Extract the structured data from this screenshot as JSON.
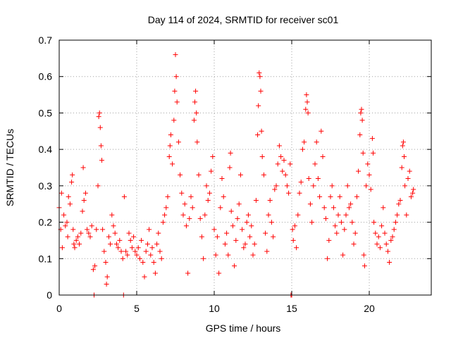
{
  "chart_data": {
    "type": "scatter",
    "title": "Day 114 of 2024, SRMTID for receiver sc01",
    "xlabel": "GPS time / hours",
    "ylabel": "SRMTID / TECUs",
    "xlim": [
      0,
      24
    ],
    "ylim": [
      0,
      0.7
    ],
    "xticks": [
      0,
      5,
      10,
      15,
      20
    ],
    "yticks": [
      0,
      0.1,
      0.2,
      0.3,
      0.4,
      0.5,
      0.6,
      0.7
    ],
    "xtick_labels": [
      "0",
      "5",
      "10",
      "15",
      "20"
    ],
    "ytick_labels": [
      "0",
      "0.1",
      "0.2",
      "0.3",
      "0.4",
      "0.5",
      "0.6",
      "0.7"
    ],
    "grid": true,
    "legend": "none",
    "marker": "plus",
    "series": [
      {
        "name": "sc01",
        "color": "#ff0000",
        "points": [
          [
            0.0,
            0.24
          ],
          [
            0.1,
            0.18
          ],
          [
            0.15,
            0.28
          ],
          [
            0.2,
            0.13
          ],
          [
            0.3,
            0.22
          ],
          [
            0.4,
            0.19
          ],
          [
            0.5,
            0.2
          ],
          [
            0.55,
            0.16
          ],
          [
            0.6,
            0.27
          ],
          [
            0.7,
            0.25
          ],
          [
            0.8,
            0.31
          ],
          [
            0.85,
            0.33
          ],
          [
            0.9,
            0.18
          ],
          [
            0.95,
            0.14
          ],
          [
            1.0,
            0.13
          ],
          [
            1.1,
            0.15
          ],
          [
            1.2,
            0.16
          ],
          [
            1.3,
            0.14
          ],
          [
            1.4,
            0.17
          ],
          [
            1.5,
            0.23
          ],
          [
            1.55,
            0.35
          ],
          [
            1.6,
            0.26
          ],
          [
            1.7,
            0.28
          ],
          [
            1.8,
            0.18
          ],
          [
            1.9,
            0.17
          ],
          [
            2.0,
            0.16
          ],
          [
            2.1,
            0.19
          ],
          [
            2.2,
            0.07
          ],
          [
            2.25,
            0.0
          ],
          [
            2.3,
            0.08
          ],
          [
            2.4,
            0.18
          ],
          [
            2.5,
            0.3
          ],
          [
            2.55,
            0.49
          ],
          [
            2.6,
            0.5
          ],
          [
            2.65,
            0.46
          ],
          [
            2.7,
            0.41
          ],
          [
            2.75,
            0.37
          ],
          [
            2.8,
            0.18
          ],
          [
            2.9,
            0.12
          ],
          [
            3.0,
            0.09
          ],
          [
            3.05,
            0.03
          ],
          [
            3.1,
            0.05
          ],
          [
            3.2,
            0.16
          ],
          [
            3.3,
            0.14
          ],
          [
            3.4,
            0.22
          ],
          [
            3.5,
            0.19
          ],
          [
            3.6,
            0.17
          ],
          [
            3.7,
            0.14
          ],
          [
            3.8,
            0.13
          ],
          [
            3.9,
            0.15
          ],
          [
            4.0,
            0.12
          ],
          [
            4.1,
            0.1
          ],
          [
            4.15,
            0.0
          ],
          [
            4.2,
            0.27
          ],
          [
            4.3,
            0.12
          ],
          [
            4.4,
            0.11
          ],
          [
            4.5,
            0.17
          ],
          [
            4.6,
            0.15
          ],
          [
            4.7,
            0.13
          ],
          [
            4.8,
            0.16
          ],
          [
            4.9,
            0.12
          ],
          [
            5.0,
            0.11
          ],
          [
            5.1,
            0.13
          ],
          [
            5.2,
            0.1
          ],
          [
            5.3,
            0.15
          ],
          [
            5.4,
            0.09
          ],
          [
            5.5,
            0.05
          ],
          [
            5.6,
            0.12
          ],
          [
            5.7,
            0.14
          ],
          [
            5.8,
            0.18
          ],
          [
            5.9,
            0.11
          ],
          [
            6.0,
            0.13
          ],
          [
            6.1,
            0.09
          ],
          [
            6.2,
            0.06
          ],
          [
            6.3,
            0.14
          ],
          [
            6.4,
            0.17
          ],
          [
            6.5,
            0.12
          ],
          [
            6.6,
            0.1
          ],
          [
            6.7,
            0.2
          ],
          [
            6.8,
            0.22
          ],
          [
            6.9,
            0.24
          ],
          [
            7.0,
            0.27
          ],
          [
            7.1,
            0.38
          ],
          [
            7.15,
            0.41
          ],
          [
            7.2,
            0.44
          ],
          [
            7.3,
            0.36
          ],
          [
            7.4,
            0.48
          ],
          [
            7.45,
            0.56
          ],
          [
            7.5,
            0.66
          ],
          [
            7.55,
            0.6
          ],
          [
            7.6,
            0.53
          ],
          [
            7.7,
            0.42
          ],
          [
            7.8,
            0.33
          ],
          [
            7.9,
            0.28
          ],
          [
            8.0,
            0.22
          ],
          [
            8.1,
            0.25
          ],
          [
            8.2,
            0.19
          ],
          [
            8.3,
            0.06
          ],
          [
            8.4,
            0.21
          ],
          [
            8.5,
            0.27
          ],
          [
            8.6,
            0.24
          ],
          [
            8.7,
            0.48
          ],
          [
            8.75,
            0.53
          ],
          [
            8.8,
            0.56
          ],
          [
            8.85,
            0.5
          ],
          [
            8.9,
            0.42
          ],
          [
            9.0,
            0.33
          ],
          [
            9.1,
            0.21
          ],
          [
            9.2,
            0.16
          ],
          [
            9.3,
            0.1
          ],
          [
            9.4,
            0.22
          ],
          [
            9.5,
            0.3
          ],
          [
            9.6,
            0.26
          ],
          [
            9.7,
            0.28
          ],
          [
            9.8,
            0.34
          ],
          [
            9.9,
            0.38
          ],
          [
            10.0,
            0.18
          ],
          [
            10.1,
            0.11
          ],
          [
            10.2,
            0.16
          ],
          [
            10.3,
            0.06
          ],
          [
            10.4,
            0.24
          ],
          [
            10.5,
            0.32
          ],
          [
            10.6,
            0.27
          ],
          [
            10.7,
            0.14
          ],
          [
            10.8,
            0.17
          ],
          [
            10.9,
            0.11
          ],
          [
            11.0,
            0.35
          ],
          [
            11.05,
            0.39
          ],
          [
            11.1,
            0.23
          ],
          [
            11.2,
            0.19
          ],
          [
            11.3,
            0.08
          ],
          [
            11.4,
            0.15
          ],
          [
            11.5,
            0.21
          ],
          [
            11.6,
            0.25
          ],
          [
            11.7,
            0.33
          ],
          [
            11.8,
            0.18
          ],
          [
            11.9,
            0.13
          ],
          [
            12.0,
            0.14
          ],
          [
            12.1,
            0.2
          ],
          [
            12.2,
            0.22
          ],
          [
            12.3,
            0.16
          ],
          [
            12.4,
            0.19
          ],
          [
            12.5,
            0.11
          ],
          [
            12.6,
            0.14
          ],
          [
            12.7,
            0.26
          ],
          [
            12.8,
            0.44
          ],
          [
            12.85,
            0.52
          ],
          [
            12.9,
            0.61
          ],
          [
            12.95,
            0.6
          ],
          [
            13.0,
            0.56
          ],
          [
            13.05,
            0.45
          ],
          [
            13.1,
            0.38
          ],
          [
            13.2,
            0.33
          ],
          [
            13.3,
            0.17
          ],
          [
            13.4,
            0.12
          ],
          [
            13.5,
            0.22
          ],
          [
            13.6,
            0.26
          ],
          [
            13.7,
            0.2
          ],
          [
            13.8,
            0.16
          ],
          [
            13.9,
            0.29
          ],
          [
            14.0,
            0.3
          ],
          [
            14.1,
            0.36
          ],
          [
            14.2,
            0.41
          ],
          [
            14.3,
            0.38
          ],
          [
            14.4,
            0.34
          ],
          [
            14.5,
            0.37
          ],
          [
            14.6,
            0.33
          ],
          [
            14.7,
            0.3
          ],
          [
            14.8,
            0.28
          ],
          [
            14.9,
            0.36
          ],
          [
            14.95,
            0.0
          ],
          [
            15.0,
            0.0
          ],
          [
            15.05,
            0.18
          ],
          [
            15.1,
            0.15
          ],
          [
            15.2,
            0.19
          ],
          [
            15.3,
            0.13
          ],
          [
            15.4,
            0.22
          ],
          [
            15.5,
            0.28
          ],
          [
            15.6,
            0.31
          ],
          [
            15.7,
            0.4
          ],
          [
            15.8,
            0.42
          ],
          [
            15.9,
            0.51
          ],
          [
            15.95,
            0.55
          ],
          [
            16.0,
            0.53
          ],
          [
            16.05,
            0.5
          ],
          [
            16.1,
            0.32
          ],
          [
            16.2,
            0.25
          ],
          [
            16.3,
            0.2
          ],
          [
            16.4,
            0.3
          ],
          [
            16.5,
            0.36
          ],
          [
            16.6,
            0.42
          ],
          [
            16.7,
            0.32
          ],
          [
            16.8,
            0.27
          ],
          [
            16.9,
            0.45
          ],
          [
            17.0,
            0.38
          ],
          [
            17.1,
            0.24
          ],
          [
            17.2,
            0.21
          ],
          [
            17.3,
            0.1
          ],
          [
            17.4,
            0.15
          ],
          [
            17.5,
            0.27
          ],
          [
            17.6,
            0.3
          ],
          [
            17.7,
            0.24
          ],
          [
            17.8,
            0.19
          ],
          [
            17.9,
            0.17
          ],
          [
            18.0,
            0.22
          ],
          [
            18.1,
            0.27
          ],
          [
            18.2,
            0.2
          ],
          [
            18.3,
            0.11
          ],
          [
            18.4,
            0.18
          ],
          [
            18.5,
            0.22
          ],
          [
            18.6,
            0.3
          ],
          [
            18.7,
            0.24
          ],
          [
            18.8,
            0.25
          ],
          [
            18.9,
            0.2
          ],
          [
            19.0,
            0.14
          ],
          [
            19.1,
            0.17
          ],
          [
            19.2,
            0.27
          ],
          [
            19.3,
            0.34
          ],
          [
            19.4,
            0.44
          ],
          [
            19.45,
            0.5
          ],
          [
            19.5,
            0.51
          ],
          [
            19.55,
            0.48
          ],
          [
            19.6,
            0.39
          ],
          [
            19.65,
            0.11
          ],
          [
            19.7,
            0.08
          ],
          [
            19.8,
            0.3
          ],
          [
            19.9,
            0.36
          ],
          [
            20.0,
            0.33
          ],
          [
            20.1,
            0.29
          ],
          [
            20.2,
            0.43
          ],
          [
            20.25,
            0.39
          ],
          [
            20.3,
            0.2
          ],
          [
            20.4,
            0.17
          ],
          [
            20.5,
            0.14
          ],
          [
            20.6,
            0.16
          ],
          [
            20.7,
            0.13
          ],
          [
            20.8,
            0.19
          ],
          [
            20.9,
            0.24
          ],
          [
            21.0,
            0.17
          ],
          [
            21.1,
            0.14
          ],
          [
            21.2,
            0.12
          ],
          [
            21.3,
            0.09
          ],
          [
            21.4,
            0.15
          ],
          [
            21.5,
            0.16
          ],
          [
            21.6,
            0.18
          ],
          [
            21.7,
            0.2
          ],
          [
            21.8,
            0.22
          ],
          [
            21.9,
            0.25
          ],
          [
            22.0,
            0.26
          ],
          [
            22.1,
            0.35
          ],
          [
            22.15,
            0.41
          ],
          [
            22.2,
            0.42
          ],
          [
            22.25,
            0.38
          ],
          [
            22.3,
            0.3
          ],
          [
            22.4,
            0.22
          ],
          [
            22.5,
            0.32
          ],
          [
            22.6,
            0.34
          ],
          [
            22.7,
            0.27
          ],
          [
            22.8,
            0.28
          ],
          [
            22.85,
            0.29
          ]
        ]
      }
    ]
  }
}
